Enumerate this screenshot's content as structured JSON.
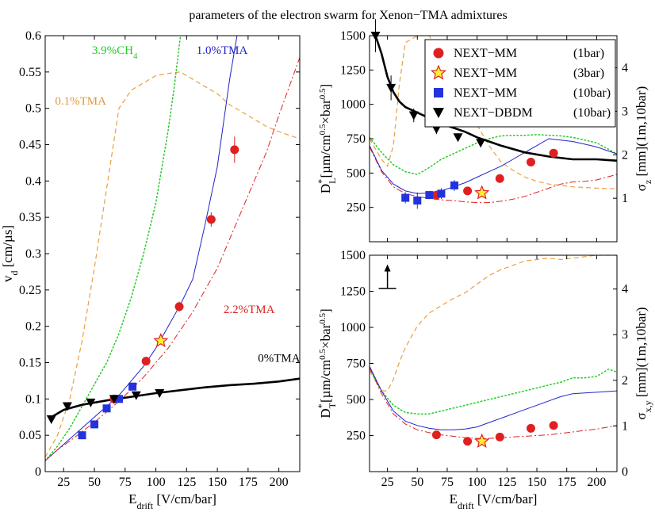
{
  "figure_title": "parameters of the electron swarm for Xenon−TMA admixtures",
  "chart_data": [
    {
      "id": "vd",
      "type": "line",
      "xlabel": "E_drift [V/cm/bar]",
      "xlabel_main": "E",
      "xlabel_sub": "drift",
      "xlabel_rest": " [V/cm/bar]",
      "ylabel": "v_d [cm/µs]",
      "ylabel_main": "v",
      "ylabel_sub": "d",
      "ylabel_rest": " [cm/µs]",
      "xlim": [
        10,
        217
      ],
      "ylim": [
        0,
        0.6
      ],
      "xticks": [
        25,
        50,
        75,
        100,
        125,
        150,
        175,
        200
      ],
      "yticks": [
        0,
        0.05,
        0.1,
        0.15,
        0.2,
        0.25,
        0.3,
        0.35,
        0.4,
        0.45,
        0.5,
        0.55,
        0.6
      ],
      "annotations": [
        {
          "text": "3.9%CH",
          "sub": "4",
          "color": "#22cc22",
          "x": 48,
          "y": 0.575
        },
        {
          "text": "1.0%TMA",
          "color": "#2222cc",
          "x": 133,
          "y": 0.575
        },
        {
          "text": "0.1%TMA",
          "color": "#e09a3a",
          "x": 18,
          "y": 0.505
        },
        {
          "text": "2.2%TMA",
          "color": "#dd2222",
          "x": 155,
          "y": 0.218
        },
        {
          "text": "0%TMA",
          "color": "#000000",
          "x": 183,
          "y": 0.151
        }
      ],
      "lines": [
        {
          "style": "dashed",
          "color": "#e8a040",
          "width": 1.2,
          "x": [
            10,
            20,
            30,
            40,
            50,
            60,
            70,
            80,
            90,
            100,
            110,
            120,
            130,
            140,
            150,
            160,
            170,
            180,
            190,
            200,
            217
          ],
          "y": [
            0.02,
            0.05,
            0.1,
            0.18,
            0.28,
            0.39,
            0.5,
            0.525,
            0.535,
            0.545,
            0.548,
            0.55,
            0.54,
            0.53,
            0.52,
            0.505,
            0.495,
            0.485,
            0.475,
            0.468,
            0.458
          ]
        },
        {
          "style": "dotted",
          "color": "#22cc22",
          "width": 1.5,
          "x": [
            10,
            20,
            30,
            40,
            50,
            60,
            70,
            80,
            90,
            100,
            110,
            115,
            120
          ],
          "y": [
            0.015,
            0.035,
            0.06,
            0.09,
            0.12,
            0.15,
            0.19,
            0.24,
            0.3,
            0.37,
            0.47,
            0.53,
            0.6
          ]
        },
        {
          "style": "solid",
          "color": "#2222cc",
          "width": 1,
          "x": [
            10,
            20,
            30,
            40,
            50,
            60,
            70,
            80,
            90,
            100,
            110,
            120,
            130,
            140,
            150,
            160,
            166
          ],
          "y": [
            0.015,
            0.03,
            0.045,
            0.06,
            0.075,
            0.09,
            0.105,
            0.125,
            0.145,
            0.17,
            0.2,
            0.23,
            0.265,
            0.34,
            0.42,
            0.54,
            0.6
          ]
        },
        {
          "style": "dashdot",
          "color": "#dd2222",
          "width": 1,
          "x": [
            10,
            20,
            30,
            40,
            50,
            60,
            70,
            80,
            90,
            100,
            110,
            120,
            130,
            140,
            150,
            160,
            170,
            180,
            190,
            200,
            217
          ],
          "y": [
            0.015,
            0.03,
            0.042,
            0.055,
            0.068,
            0.082,
            0.097,
            0.113,
            0.13,
            0.15,
            0.17,
            0.195,
            0.22,
            0.25,
            0.28,
            0.32,
            0.36,
            0.4,
            0.44,
            0.49,
            0.57
          ]
        },
        {
          "style": "solid",
          "color": "#000000",
          "width": 2.6,
          "x": [
            15,
            25,
            40,
            60,
            80,
            100,
            120,
            140,
            160,
            180,
            200,
            217
          ],
          "y": [
            0.075,
            0.085,
            0.092,
            0.098,
            0.103,
            0.108,
            0.112,
            0.116,
            0.119,
            0.121,
            0.124,
            0.128
          ]
        }
      ],
      "points": [
        {
          "marker": "circle",
          "color": "#e02020",
          "x": [
            66,
            92,
            119,
            145,
            164
          ],
          "y": [
            0.1,
            0.152,
            0.227,
            0.347,
            0.443
          ],
          "err": [
            0.004,
            0.005,
            0.007,
            0.01,
            0.018
          ]
        },
        {
          "marker": "star",
          "color": "#e02020",
          "fill": "#ffee33",
          "x": [
            104
          ],
          "y": [
            0.18
          ]
        },
        {
          "marker": "square",
          "color": "#2233dd",
          "x": [
            40,
            50,
            60,
            70,
            81
          ],
          "y": [
            0.05,
            0.065,
            0.087,
            0.1,
            0.117
          ]
        },
        {
          "marker": "triangle",
          "color": "#000000",
          "x": [
            15,
            28,
            47,
            66,
            84,
            103
          ],
          "y": [
            0.072,
            0.09,
            0.095,
            0.1,
            0.105,
            0.108
          ]
        }
      ]
    },
    {
      "id": "DL",
      "type": "line",
      "xlim": [
        10,
        217
      ],
      "ylim": [
        0,
        1500
      ],
      "xticks": [
        25,
        50,
        75,
        100,
        125,
        150,
        175,
        200
      ],
      "yticks": [
        250,
        500,
        750,
        1000,
        1250,
        1500
      ],
      "ylabel": "D*_L [µm/cm^0.5×bar^0.5]",
      "ylabel_main": "D",
      "ylabel_sup": "*",
      "ylabel_sub": "L",
      "ylabel_rest": "[µm/cm",
      "ylabel_sup2": "0.5",
      "ylabel_rest2": "×bar",
      "ylabel_sup3": "0.5",
      "ylabel_end": "]",
      "y2label": "σ_z [mm](1m,10bar)",
      "y2label_main": "σ",
      "y2label_sub": "z",
      "y2label_rest": " [mm](1m,10bar)",
      "y2lim": [
        0,
        4.74
      ],
      "y2ticks": [
        1,
        2,
        3,
        4
      ],
      "legend": {
        "location": "top-right",
        "entries": [
          {
            "marker": "circle",
            "color": "#e02020",
            "label": "NEXT−MM",
            "cond": "(1bar)"
          },
          {
            "marker": "star",
            "color": "#e02020",
            "fill": "#ffee33",
            "label": "NEXT−MM",
            "cond": "(3bar)"
          },
          {
            "marker": "square",
            "color": "#2233dd",
            "label": "NEXT−MM",
            "cond": "(10bar)"
          },
          {
            "marker": "triangle",
            "color": "#000000",
            "label": "NEXT−DBDM",
            "cond": "(10bar)"
          }
        ]
      },
      "lines": [
        {
          "style": "dashed",
          "color": "#e8a040",
          "width": 1.2,
          "x": [
            10,
            20,
            25,
            30,
            35,
            40,
            50,
            60,
            70,
            80,
            90,
            100,
            110,
            120,
            130,
            140,
            150,
            160,
            170,
            180,
            190,
            200,
            217
          ],
          "y": [
            750,
            600,
            550,
            700,
            1150,
            1450,
            1500,
            1500,
            1320,
            1150,
            1000,
            850,
            700,
            580,
            520,
            470,
            440,
            420,
            410,
            400,
            395,
            390,
            385
          ]
        },
        {
          "style": "dotted",
          "color": "#22cc22",
          "width": 1.5,
          "x": [
            10,
            20,
            30,
            40,
            50,
            60,
            70,
            80,
            90,
            100,
            110,
            120,
            130,
            140,
            150,
            160,
            170,
            180,
            190,
            200,
            217
          ],
          "y": [
            760,
            650,
            560,
            510,
            490,
            540,
            600,
            640,
            680,
            720,
            750,
            770,
            775,
            775,
            780,
            775,
            770,
            760,
            740,
            720,
            640
          ]
        },
        {
          "style": "solid",
          "color": "#2222cc",
          "width": 1,
          "x": [
            10,
            20,
            30,
            40,
            50,
            60,
            70,
            80,
            90,
            100,
            110,
            120,
            130,
            140,
            150,
            160,
            170,
            180,
            190,
            200,
            217
          ],
          "y": [
            700,
            520,
            420,
            370,
            350,
            355,
            370,
            400,
            430,
            470,
            510,
            550,
            600,
            650,
            700,
            750,
            740,
            730,
            710,
            690,
            640
          ]
        },
        {
          "style": "dashdot",
          "color": "#dd2222",
          "width": 1,
          "x": [
            10,
            20,
            30,
            40,
            50,
            60,
            70,
            80,
            90,
            100,
            110,
            120,
            130,
            140,
            150,
            160,
            170,
            180,
            190,
            200,
            217
          ],
          "y": [
            690,
            510,
            400,
            350,
            330,
            315,
            305,
            300,
            290,
            285,
            285,
            295,
            310,
            330,
            360,
            390,
            420,
            435,
            440,
            450,
            490
          ]
        },
        {
          "style": "solid",
          "color": "#000000",
          "width": 2.6,
          "x": [
            15,
            20,
            25,
            30,
            35,
            40,
            50,
            60,
            70,
            80,
            90,
            100,
            110,
            120,
            140,
            160,
            180,
            200,
            217
          ],
          "y": [
            1500,
            1370,
            1200,
            1090,
            1020,
            980,
            940,
            900,
            860,
            830,
            800,
            760,
            730,
            700,
            650,
            620,
            600,
            600,
            590
          ]
        }
      ],
      "points": [
        {
          "marker": "circle",
          "color": "#e02020",
          "x": [
            66,
            92,
            119,
            145,
            164
          ],
          "y": [
            340,
            370,
            460,
            580,
            645
          ],
          "err": [
            20,
            20,
            20,
            25,
            30
          ]
        },
        {
          "marker": "star",
          "color": "#e02020",
          "fill": "#ffee33",
          "x": [
            104
          ],
          "y": [
            355
          ]
        },
        {
          "marker": "square",
          "color": "#2233dd",
          "x": [
            40,
            50,
            60,
            70,
            81
          ],
          "y": [
            320,
            300,
            340,
            350,
            410
          ],
          "err": [
            40,
            60,
            30,
            40,
            40
          ]
        },
        {
          "marker": "triangle",
          "color": "#000000",
          "x": [
            15,
            28,
            47,
            66,
            84,
            103
          ],
          "y": [
            1500,
            1120,
            920,
            820,
            760,
            720
          ],
          "err": [
            120,
            90,
            50,
            35,
            30,
            30
          ]
        }
      ]
    },
    {
      "id": "DT",
      "type": "line",
      "xlabel": "E_drift [V/cm/bar]",
      "xlabel_main": "E",
      "xlabel_sub": "drift",
      "xlabel_rest": " [V/cm/bar]",
      "xlim": [
        10,
        217
      ],
      "ylim": [
        0,
        1500
      ],
      "xticks": [
        25,
        50,
        75,
        100,
        125,
        150,
        175,
        200
      ],
      "yticks": [
        250,
        500,
        750,
        1000,
        1250,
        1500
      ],
      "ylabel": "D*_T [µm/cm^0.5×bar^0.5]",
      "ylabel_main": "D",
      "ylabel_sup": "*",
      "ylabel_sub": "T",
      "ylabel_rest": "[µm/cm",
      "ylabel_sup2": "0.5",
      "ylabel_rest2": "×bar",
      "ylabel_sup3": "0.5",
      "ylabel_end": "]",
      "y2label": "σ_x,y [mm](1m,10bar)",
      "y2label_main": "σ",
      "y2label_sub": "x,y",
      "y2label_rest": " [mm](1m,10bar)",
      "y2lim": [
        0,
        4.74
      ],
      "y2ticks": [
        0,
        1,
        2,
        3,
        4
      ],
      "lines": [
        {
          "style": "dashed",
          "color": "#e8a040",
          "width": 1.2,
          "x": [
            10,
            20,
            25,
            30,
            35,
            40,
            50,
            60,
            70,
            80,
            90,
            100,
            110,
            120,
            130,
            140,
            150,
            160,
            170,
            180,
            190,
            200,
            217
          ],
          "y": [
            700,
            560,
            560,
            640,
            760,
            860,
            1010,
            1100,
            1150,
            1200,
            1240,
            1300,
            1360,
            1400,
            1430,
            1460,
            1470,
            1480,
            1470,
            1480,
            1490,
            1500,
            1500
          ]
        },
        {
          "style": "dotted",
          "color": "#22cc22",
          "width": 1.5,
          "x": [
            10,
            20,
            30,
            40,
            50,
            60,
            70,
            80,
            90,
            100,
            110,
            120,
            130,
            140,
            150,
            160,
            170,
            180,
            190,
            200,
            210,
            217
          ],
          "y": [
            720,
            560,
            460,
            410,
            400,
            400,
            420,
            440,
            460,
            480,
            500,
            520,
            540,
            560,
            580,
            600,
            620,
            650,
            650,
            660,
            710,
            690
          ]
        },
        {
          "style": "solid",
          "color": "#2222cc",
          "width": 1,
          "x": [
            10,
            20,
            30,
            40,
            50,
            60,
            70,
            80,
            90,
            100,
            110,
            120,
            130,
            140,
            150,
            160,
            170,
            180,
            190,
            200,
            217
          ],
          "y": [
            730,
            560,
            420,
            350,
            320,
            300,
            290,
            290,
            295,
            310,
            340,
            370,
            400,
            430,
            460,
            490,
            520,
            540,
            545,
            550,
            560
          ]
        },
        {
          "style": "dashdot",
          "color": "#dd2222",
          "width": 1,
          "x": [
            10,
            20,
            30,
            40,
            50,
            60,
            70,
            80,
            90,
            100,
            110,
            120,
            130,
            140,
            150,
            160,
            170,
            180,
            190,
            200,
            217
          ],
          "y": [
            720,
            540,
            400,
            330,
            290,
            270,
            255,
            245,
            235,
            230,
            230,
            235,
            240,
            245,
            250,
            255,
            265,
            275,
            285,
            295,
            320
          ]
        }
      ],
      "points": [
        {
          "marker": "circle",
          "color": "#e02020",
          "x": [
            66,
            92,
            119,
            145,
            164
          ],
          "y": [
            255,
            210,
            240,
            300,
            320
          ],
          "err": [
            15,
            15,
            15,
            15,
            20
          ]
        },
        {
          "marker": "star",
          "color": "#e02020",
          "fill": "#ffee33",
          "x": [
            104
          ],
          "y": [
            210
          ]
        }
      ],
      "arrow": {
        "x": 25,
        "y_from": 1270,
        "y_to": 1420
      }
    }
  ]
}
